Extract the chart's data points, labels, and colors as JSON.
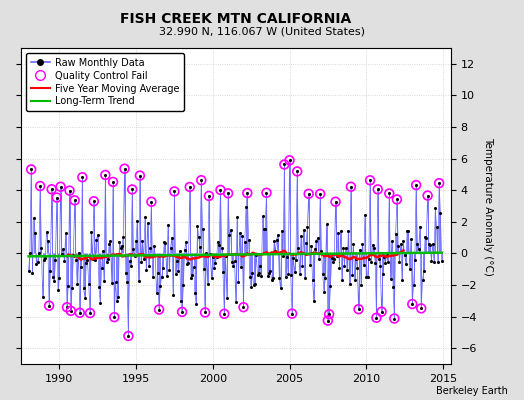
{
  "title": "FISH CREEK MTN CALIFORNIA",
  "subtitle": "32.990 N, 116.067 W (United States)",
  "ylabel": "Temperature Anomaly (°C)",
  "credit": "Berkeley Earth",
  "xlim": [
    1987.5,
    2015.5
  ],
  "ylim": [
    -7,
    13
  ],
  "yticks": [
    -6,
    -4,
    -2,
    0,
    2,
    4,
    6,
    8,
    10,
    12
  ],
  "xticks": [
    1990,
    1995,
    2000,
    2005,
    2010,
    2015
  ],
  "fig_bg_color": "#e0e0e0",
  "plot_bg_color": "#ffffff",
  "grid_color": "#cccccc",
  "raw_line_color": "#6666ff",
  "raw_dot_color": "black",
  "qc_fail_color": "magenta",
  "moving_avg_color": "red",
  "trend_color": "#00bb00",
  "seed": 12345
}
